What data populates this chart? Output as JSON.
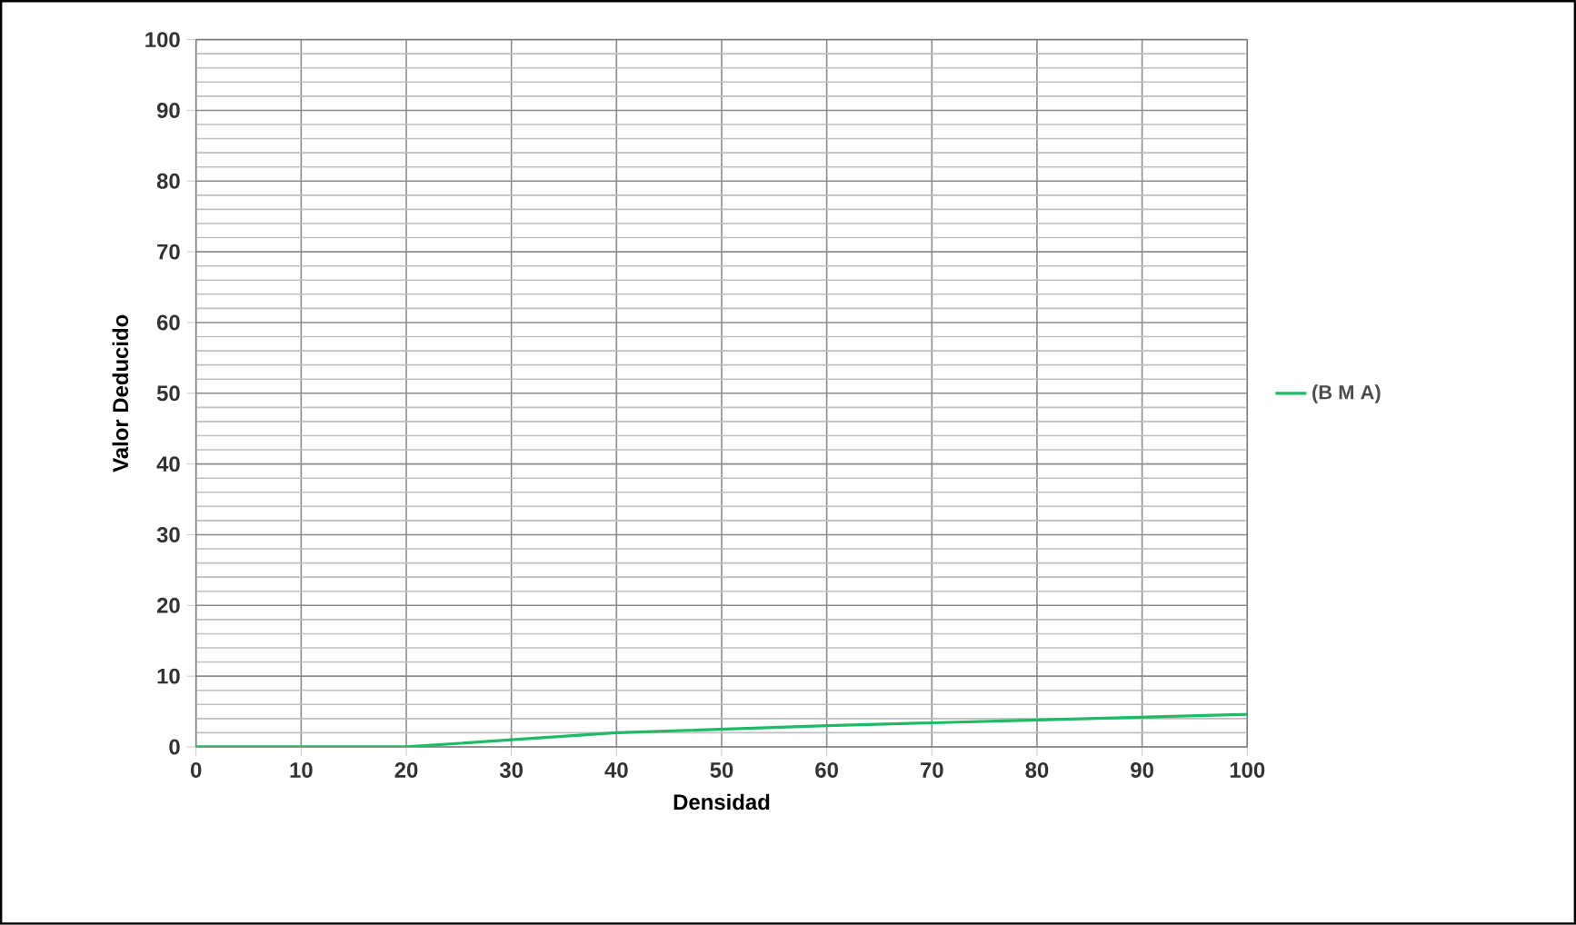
{
  "chart_data": {
    "type": "line",
    "xlabel": "Densidad",
    "ylabel": "Valor Deducido",
    "x": [
      0,
      10,
      20,
      30,
      40,
      50,
      60,
      70,
      80,
      90,
      100
    ],
    "series": [
      {
        "name": "(B M A)",
        "color": "#1fba66",
        "values": [
          0,
          0,
          0,
          1,
          2,
          2.5,
          3,
          3.4,
          3.8,
          4.2,
          4.6
        ]
      }
    ],
    "xlim": [
      0,
      100
    ],
    "ylim": [
      0,
      100
    ],
    "xticks": [
      0,
      10,
      20,
      30,
      40,
      50,
      60,
      70,
      80,
      90,
      100
    ],
    "yticks": [
      0,
      10,
      20,
      30,
      40,
      50,
      60,
      70,
      80,
      90,
      100
    ],
    "grid": true,
    "legend": "right",
    "marker": "none",
    "line_style": "solid"
  }
}
